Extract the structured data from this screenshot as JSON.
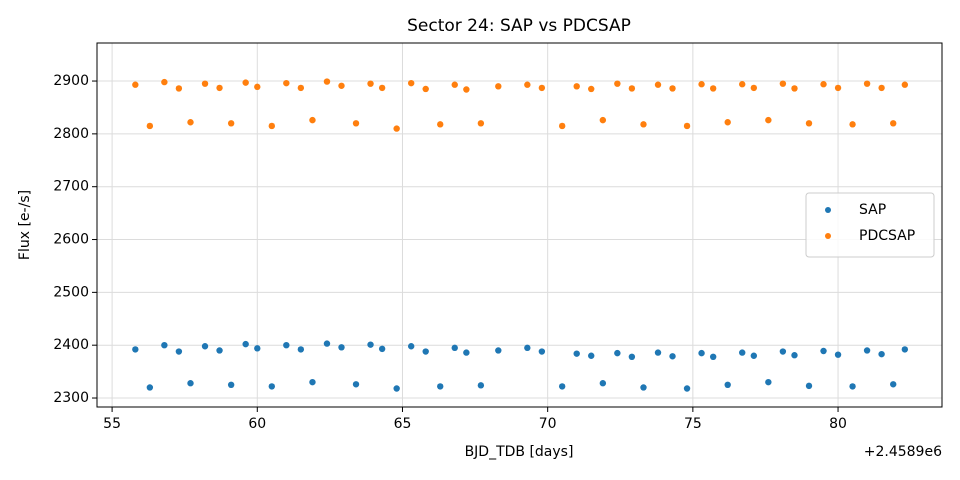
{
  "chart_data": {
    "type": "scatter",
    "title": "Sector 24: SAP vs PDCSAP",
    "x_label": "BJD_TDB [days]",
    "y_label": "Flux [e-/s]",
    "x_offset_label": "+2.4589e6",
    "x": [
      55.8,
      56.3,
      56.8,
      57.3,
      57.7,
      58.2,
      58.7,
      59.1,
      59.6,
      60.0,
      60.5,
      61.0,
      61.5,
      61.9,
      62.4,
      62.9,
      63.4,
      63.9,
      64.3,
      64.8,
      65.3,
      65.8,
      66.3,
      66.8,
      67.2,
      67.7,
      68.3,
      69.3,
      69.8,
      70.5,
      71.0,
      71.5,
      71.9,
      72.4,
      72.9,
      73.3,
      73.8,
      74.3,
      74.8,
      75.3,
      75.7,
      76.2,
      76.7,
      77.1,
      77.6,
      78.1,
      78.5,
      79.0,
      79.5,
      80.0,
      80.5,
      81.0,
      81.5,
      81.9,
      82.3
    ],
    "series": [
      {
        "name": "SAP",
        "color": "#1f77b4",
        "values": [
          2392,
          2320,
          2400,
          2388,
          2328,
          2398,
          2390,
          2325,
          2402,
          2394,
          2322,
          2400,
          2392,
          2330,
          2403,
          2396,
          2326,
          2401,
          2393,
          2318,
          2398,
          2388,
          2322,
          2395,
          2386,
          2324,
          2390,
          2395,
          2388,
          2322,
          2384,
          2380,
          2328,
          2385,
          2378,
          2320,
          2386,
          2379,
          2318,
          2385,
          2378,
          2325,
          2386,
          2380,
          2330,
          2388,
          2381,
          2323,
          2389,
          2382,
          2322,
          2390,
          2383,
          2326,
          2392
        ]
      },
      {
        "name": "PDCSAP",
        "color": "#ff7f0e",
        "values": [
          2893,
          2815,
          2898,
          2886,
          2822,
          2895,
          2887,
          2820,
          2897,
          2889,
          2815,
          2896,
          2887,
          2826,
          2899,
          2891,
          2820,
          2895,
          2887,
          2810,
          2896,
          2885,
          2818,
          2893,
          2884,
          2820,
          2890,
          2893,
          2887,
          2815,
          2890,
          2885,
          2826,
          2895,
          2886,
          2818,
          2893,
          2886,
          2815,
          2894,
          2886,
          2822,
          2894,
          2887,
          2826,
          2895,
          2886,
          2820,
          2894,
          2887,
          2818,
          2895,
          2887,
          2820,
          2893
        ]
      }
    ],
    "xlim": [
      54.48,
      83.58
    ],
    "xticks": [
      55,
      60,
      65,
      70,
      75,
      80
    ],
    "ylim": [
      2283,
      2972
    ],
    "yticks": [
      2300,
      2400,
      2500,
      2600,
      2700,
      2800,
      2900
    ],
    "grid": true,
    "legend": "center right"
  }
}
